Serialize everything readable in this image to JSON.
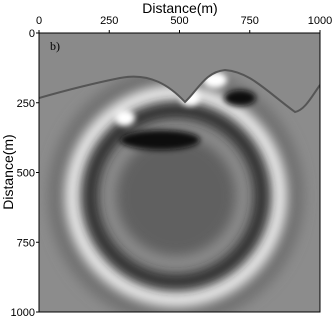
{
  "chart_data": {
    "type": "image",
    "annotation": "b)",
    "xlabel": "Distance(m)",
    "ylabel": "Distance(m)",
    "xlim": [
      0,
      1000
    ],
    "ylim": [
      0,
      1000
    ],
    "y_inverted": true,
    "xticks": [
      0,
      250,
      500,
      750,
      1000
    ],
    "yticks": [
      0,
      250,
      500,
      750,
      1000
    ]
  }
}
